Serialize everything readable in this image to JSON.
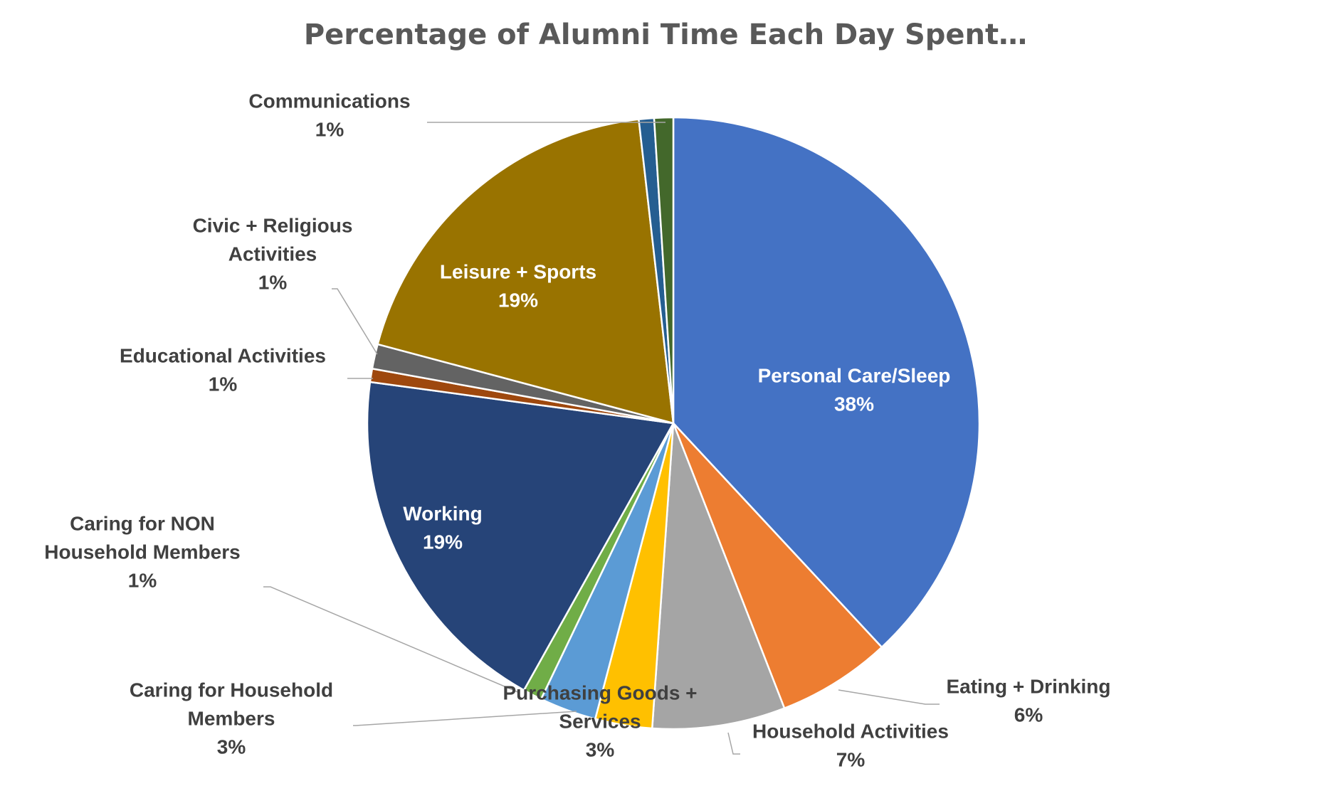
{
  "chart_data": {
    "type": "pie",
    "title": "Percentage of Alumni Time Each Day Spent…",
    "slices": [
      {
        "label": "Personal Care/Sleep",
        "label_lines": [
          "Personal Care/Sleep"
        ],
        "value": 38,
        "value_label": "38%",
        "color": "#4472C4"
      },
      {
        "label": "Eating + Drinking",
        "label_lines": [
          "Eating + Drinking"
        ],
        "value": 6,
        "value_label": "6%",
        "color": "#ED7D31"
      },
      {
        "label": "Household Activities",
        "label_lines": [
          "Household Activities"
        ],
        "value": 7,
        "value_label": "7%",
        "color": "#A5A5A5"
      },
      {
        "label": "Purchasing Goods + Services",
        "label_lines": [
          "Purchasing Goods +",
          "Services"
        ],
        "value": 3,
        "value_label": "3%",
        "color": "#FFC000"
      },
      {
        "label": "Caring for Household Members",
        "label_lines": [
          "Caring for Household",
          "Members"
        ],
        "value": 3,
        "value_label": "3%",
        "color": "#5B9BD5"
      },
      {
        "label": "Caring for NON Household Members",
        "label_lines": [
          "Caring for NON",
          "Household Members"
        ],
        "value": 1,
        "value_label": "1%",
        "color": "#70AD47"
      },
      {
        "label": "Working",
        "label_lines": [
          "Working"
        ],
        "value": 19,
        "value_label": "19%",
        "color": "#264478"
      },
      {
        "label": "Educational Activities",
        "label_lines": [
          "Educational Activities"
        ],
        "value": 0.7,
        "value_label": "1%",
        "color": "#9E480E"
      },
      {
        "label": "Civic + Religious Activities",
        "label_lines": [
          "Civic + Religious",
          "Activities"
        ],
        "value": 1.3,
        "value_label": "1%",
        "color": "#636363"
      },
      {
        "label": "Leisure + Sports",
        "label_lines": [
          "Leisure + Sports"
        ],
        "value": 19,
        "value_label": "19%",
        "color": "#997300"
      },
      {
        "label": "",
        "label_lines": [],
        "value": 0.8,
        "value_label": "",
        "color": "#255E91"
      },
      {
        "label": "Communications",
        "label_lines": [
          "Communications"
        ],
        "value": 1,
        "value_label": "1%",
        "color": "#43682B"
      }
    ]
  }
}
